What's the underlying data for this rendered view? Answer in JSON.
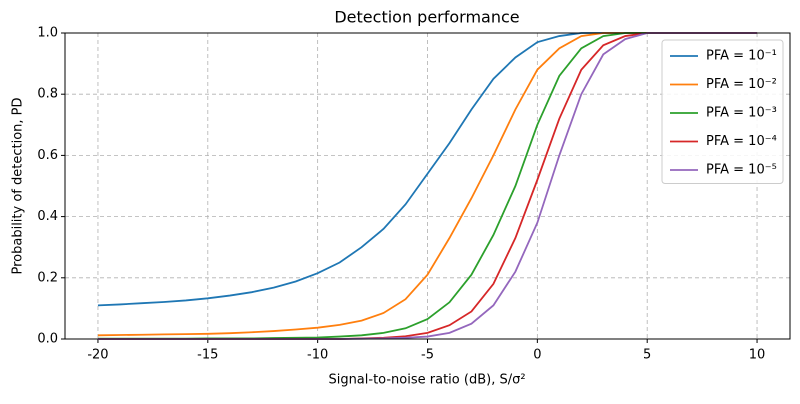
{
  "chart_data": {
    "type": "line",
    "title": "Detection performance",
    "x_label": "Signal-to-noise ratio (dB), S/σ²",
    "y_label": "Probability of detection, PD",
    "x": [
      -20,
      -19,
      -18,
      -17,
      -16,
      -15,
      -14,
      -13,
      -12,
      -11,
      -10,
      -9,
      -8,
      -7,
      -6,
      -5,
      -4,
      -3,
      -2,
      -1,
      0,
      1,
      2,
      3,
      4,
      5,
      6,
      7,
      8,
      9,
      10
    ],
    "series": [
      {
        "name": "PFA = 10⁻¹",
        "color": "#1f77b4",
        "values": [
          0.11,
          0.113,
          0.117,
          0.121,
          0.126,
          0.133,
          0.142,
          0.153,
          0.168,
          0.188,
          0.215,
          0.25,
          0.3,
          0.36,
          0.44,
          0.54,
          0.64,
          0.75,
          0.85,
          0.92,
          0.97,
          0.99,
          1,
          1,
          1,
          1,
          1,
          1,
          1,
          1,
          1
        ]
      },
      {
        "name": "PFA = 10⁻²",
        "color": "#ff7f0e",
        "values": [
          0.012,
          0.013,
          0.014,
          0.015,
          0.016,
          0.017,
          0.019,
          0.022,
          0.026,
          0.031,
          0.037,
          0.046,
          0.06,
          0.085,
          0.13,
          0.21,
          0.33,
          0.46,
          0.6,
          0.75,
          0.88,
          0.95,
          0.99,
          1,
          1,
          1,
          1,
          1,
          1,
          1,
          1
        ]
      },
      {
        "name": "PFA = 10⁻³",
        "color": "#2ca02c",
        "values": [
          0.001,
          0.001,
          0.001,
          0.001,
          0.001,
          0.002,
          0.002,
          0.002,
          0.003,
          0.004,
          0.005,
          0.008,
          0.012,
          0.02,
          0.035,
          0.065,
          0.12,
          0.21,
          0.34,
          0.5,
          0.7,
          0.86,
          0.95,
          0.99,
          1,
          1,
          1,
          1,
          1,
          1,
          1
        ]
      },
      {
        "name": "PFA = 10⁻⁴",
        "color": "#d62728",
        "values": [
          0,
          0,
          0,
          0,
          0,
          0,
          0,
          0,
          0,
          0,
          0,
          0,
          0.002,
          0.004,
          0.009,
          0.02,
          0.045,
          0.09,
          0.18,
          0.33,
          0.52,
          0.72,
          0.88,
          0.96,
          0.99,
          1,
          1,
          1,
          1,
          1,
          1
        ]
      },
      {
        "name": "PFA = 10⁻⁵",
        "color": "#9467bd",
        "values": [
          0,
          0,
          0,
          0,
          0,
          0,
          0,
          0,
          0,
          0,
          0,
          0,
          0.001,
          0.002,
          0.004,
          0.008,
          0.02,
          0.05,
          0.11,
          0.22,
          0.38,
          0.6,
          0.8,
          0.93,
          0.98,
          1,
          1,
          1,
          1,
          1,
          1
        ]
      }
    ],
    "xlim": [
      -21.5,
      11.5
    ],
    "xticks": [
      -20,
      -15,
      -10,
      -5,
      0,
      5,
      10
    ],
    "ylim": [
      0,
      1
    ],
    "yticks": [
      {
        "value": 0,
        "label": "0.0"
      },
      {
        "value": 0.2,
        "label": "0.2"
      },
      {
        "value": 0.4,
        "label": "0.4"
      },
      {
        "value": 0.6,
        "label": "0.6"
      },
      {
        "value": 0.8,
        "label": "0.8"
      },
      {
        "value": 1,
        "label": "1.0"
      }
    ],
    "grid": true,
    "legend": "upper right"
  }
}
